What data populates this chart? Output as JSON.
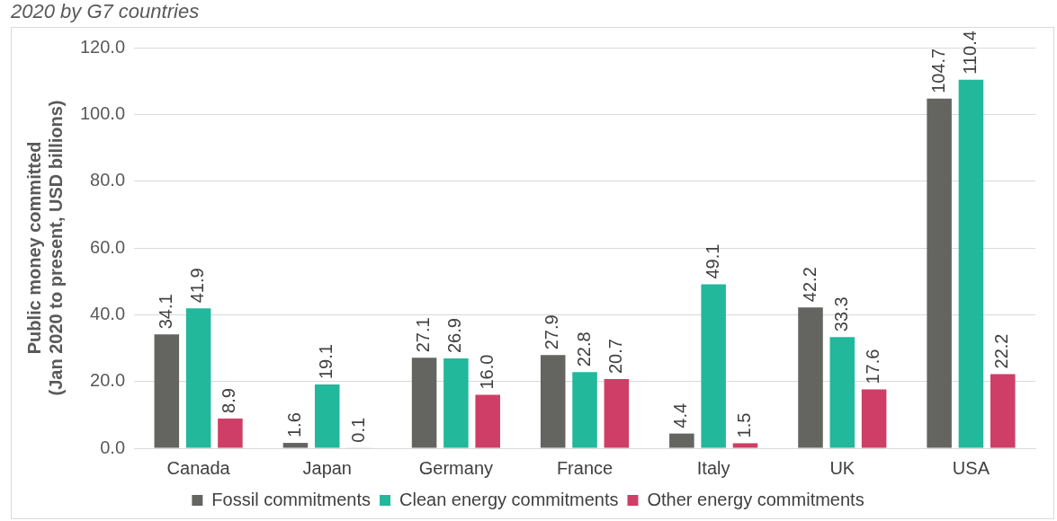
{
  "chart_data": {
    "type": "bar",
    "title": "2020 by G7 countries",
    "ylabel": "Public money committed\n(Jan 2020 to present, USD billions)",
    "categories": [
      "Canada",
      "Japan",
      "Germany",
      "France",
      "Italy",
      "UK",
      "USA"
    ],
    "series": [
      {
        "name": "Fossil commitments",
        "color": "#646561",
        "values": [
          34.1,
          1.6,
          27.1,
          27.9,
          4.4,
          42.2,
          104.7
        ],
        "value_labels": [
          "34.1",
          "1.6",
          "27.1",
          "27.9",
          "4.4",
          "42.2",
          "104.7"
        ]
      },
      {
        "name": "Clean energy commitments",
        "color": "#22b89c",
        "values": [
          41.9,
          19.1,
          26.9,
          22.8,
          49.1,
          33.3,
          110.4
        ],
        "value_labels": [
          "41.9",
          "19.1",
          "26.9",
          "22.8",
          "49.1",
          "33.3",
          "110.4"
        ]
      },
      {
        "name": "Other energy commitments",
        "color": "#cf3e66",
        "values": [
          8.9,
          0.1,
          16.0,
          20.7,
          1.5,
          17.6,
          22.2
        ],
        "value_labels": [
          "8.9",
          "0.1",
          "16.0",
          "20.7",
          "1.5",
          "17.6",
          "22.2"
        ]
      }
    ],
    "ylim": [
      0,
      120
    ],
    "yticks": [
      {
        "value": 0,
        "label": "0.0"
      },
      {
        "value": 20,
        "label": "20.0"
      },
      {
        "value": 40,
        "label": "40.0"
      },
      {
        "value": 60,
        "label": "60.0"
      },
      {
        "value": 80,
        "label": "80.0"
      },
      {
        "value": 100,
        "label": "100.0"
      },
      {
        "value": 120,
        "label": "120.0"
      }
    ],
    "grid": "y",
    "legend": "bottom"
  }
}
